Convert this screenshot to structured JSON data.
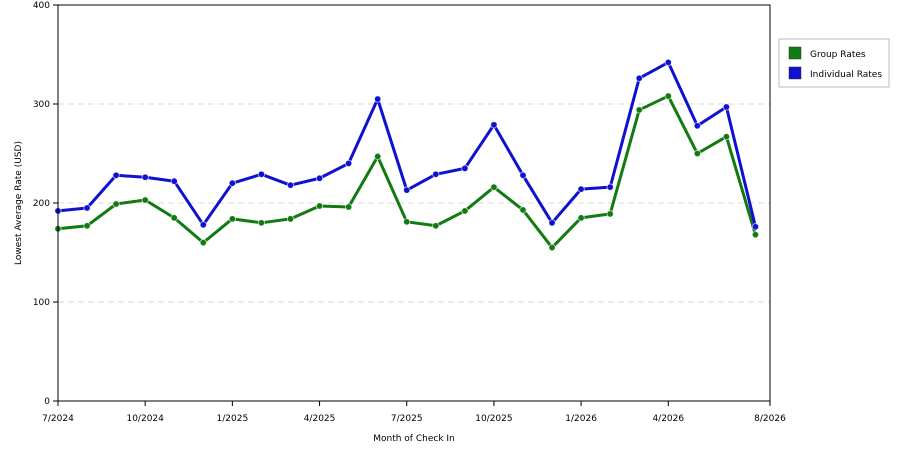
{
  "chart_data": {
    "type": "line",
    "title": "",
    "xlabel": "Month of Check In",
    "ylabel": "Lowest Average Rate (USD)",
    "ylim": [
      0,
      400
    ],
    "y_ticks": [
      0,
      100,
      200,
      300,
      400
    ],
    "x_tick_labels": [
      "7/2024",
      "10/2024",
      "1/2025",
      "4/2025",
      "7/2025",
      "10/2025",
      "1/2026",
      "4/2026",
      "8/2026"
    ],
    "x_tick_index": [
      0,
      3,
      6,
      9,
      12,
      15,
      18,
      21,
      24.5
    ],
    "x_max_index": 24.5,
    "grid": true,
    "legend_position": "top-right",
    "series": [
      {
        "name": "Group Rates",
        "color": "#117a11",
        "values": [
          174,
          177,
          199,
          203,
          185,
          160,
          184,
          180,
          184,
          197,
          196,
          247,
          181,
          177,
          192,
          216,
          193,
          155,
          185,
          189,
          294,
          308,
          250,
          267,
          168
        ]
      },
      {
        "name": "Individual Rates",
        "color": "#1010d0",
        "values": [
          192,
          195,
          228,
          226,
          222,
          178,
          220,
          229,
          218,
          225,
          240,
          305,
          213,
          229,
          235,
          279,
          228,
          180,
          214,
          216,
          326,
          342,
          278,
          297,
          176
        ]
      }
    ]
  }
}
